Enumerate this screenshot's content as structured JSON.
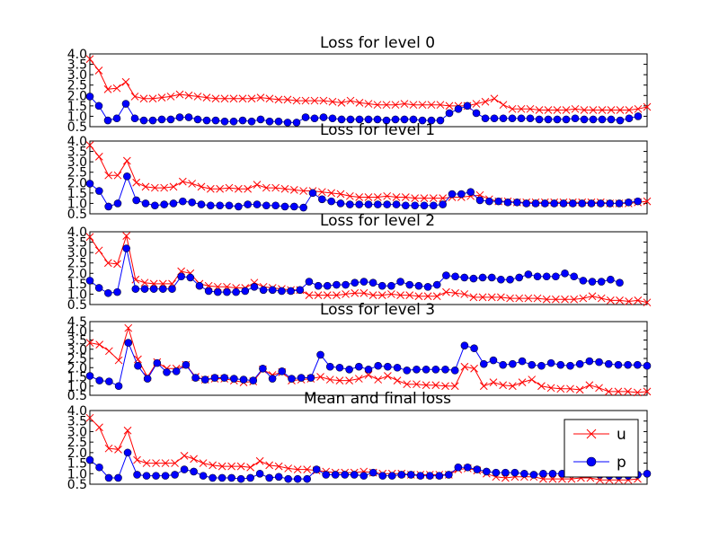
{
  "colors": {
    "u": "#ff0000",
    "p": "#0000ff",
    "axes": "#000000",
    "background": "#ffffff"
  },
  "chart_data": [
    {
      "type": "line",
      "title": "Loss for level 0",
      "ylim": [
        0.5,
        4.0
      ],
      "yticks": [
        "0.5",
        "1.0",
        "1.5",
        "2.0",
        "2.5",
        "3.0",
        "3.5",
        "4.0"
      ],
      "series": [
        {
          "name": "u",
          "marker": "x",
          "values": [
            3.75,
            3.2,
            2.3,
            2.35,
            2.65,
            1.95,
            1.85,
            1.85,
            1.9,
            1.95,
            2.05,
            2.0,
            1.95,
            1.9,
            1.85,
            1.85,
            1.85,
            1.85,
            1.85,
            1.9,
            1.85,
            1.8,
            1.8,
            1.75,
            1.75,
            1.75,
            1.75,
            1.7,
            1.65,
            1.75,
            1.65,
            1.6,
            1.55,
            1.55,
            1.55,
            1.6,
            1.55,
            1.55,
            1.55,
            1.55,
            1.5,
            1.5,
            1.5,
            1.6,
            1.7,
            1.85,
            1.55,
            1.35,
            1.35,
            1.35,
            1.3,
            1.3,
            1.3,
            1.3,
            1.35,
            1.3,
            1.3,
            1.3,
            1.3,
            1.3,
            1.3,
            1.35,
            1.45
          ]
        },
        {
          "name": "p",
          "marker": "o",
          "values": [
            1.95,
            1.5,
            0.8,
            0.9,
            1.6,
            0.9,
            0.8,
            0.8,
            0.85,
            0.85,
            0.95,
            0.95,
            0.85,
            0.8,
            0.8,
            0.75,
            0.75,
            0.8,
            0.75,
            0.85,
            0.75,
            0.75,
            0.7,
            0.7,
            0.95,
            0.9,
            0.95,
            0.9,
            0.85,
            0.85,
            0.85,
            0.85,
            0.85,
            0.8,
            0.85,
            0.85,
            0.85,
            0.8,
            0.8,
            0.8,
            1.15,
            1.35,
            1.5,
            1.15,
            0.9,
            0.9,
            0.9,
            0.9,
            0.9,
            0.9,
            0.85,
            0.85,
            0.85,
            0.85,
            0.9,
            0.85,
            0.85,
            0.85,
            0.85,
            0.8,
            0.9,
            1.0
          ]
        }
      ]
    },
    {
      "type": "line",
      "title": "Loss for level 1",
      "ylim": [
        0.5,
        4.0
      ],
      "yticks": [
        "0.5",
        "1.0",
        "1.5",
        "2.0",
        "2.5",
        "3.0",
        "3.5",
        "4.0"
      ],
      "series": [
        {
          "name": "u",
          "marker": "x",
          "values": [
            3.8,
            3.25,
            2.35,
            2.35,
            3.05,
            2.0,
            1.8,
            1.75,
            1.75,
            1.8,
            2.05,
            1.95,
            1.8,
            1.7,
            1.7,
            1.75,
            1.7,
            1.7,
            1.9,
            1.75,
            1.75,
            1.7,
            1.65,
            1.6,
            1.6,
            1.55,
            1.5,
            1.45,
            1.35,
            1.3,
            1.3,
            1.3,
            1.35,
            1.3,
            1.3,
            1.25,
            1.25,
            1.25,
            1.25,
            1.3,
            1.3,
            1.35,
            1.4,
            1.2,
            1.1,
            1.1,
            1.05,
            1.05,
            1.05,
            1.05,
            1.05,
            1.05,
            1.05,
            1.05,
            1.05,
            1.05,
            1.0,
            1.0,
            1.0,
            1.05,
            1.1
          ]
        },
        {
          "name": "p",
          "marker": "o",
          "values": [
            1.95,
            1.6,
            0.85,
            1.0,
            2.3,
            1.15,
            1.0,
            0.9,
            0.95,
            1.0,
            1.1,
            1.05,
            0.95,
            0.9,
            0.9,
            0.9,
            0.85,
            0.95,
            0.95,
            0.9,
            0.9,
            0.85,
            0.85,
            0.8,
            1.5,
            1.2,
            1.1,
            1.0,
            0.95,
            0.95,
            0.95,
            0.95,
            0.95,
            0.95,
            0.9,
            0.9,
            0.9,
            0.9,
            0.95,
            1.45,
            1.45,
            1.55,
            1.15,
            1.1,
            1.1,
            1.05,
            1.05,
            1.0,
            1.0,
            1.0,
            1.0,
            1.0,
            1.0,
            1.0,
            1.0,
            1.0,
            1.0,
            1.0,
            1.05,
            1.1
          ]
        }
      ]
    },
    {
      "type": "line",
      "title": "Loss for level 2",
      "ylim": [
        0.5,
        4.0
      ],
      "yticks": [
        "0.5",
        "1.0",
        "1.5",
        "2.0",
        "2.5",
        "3.0",
        "3.5",
        "4.0"
      ],
      "series": [
        {
          "name": "u",
          "marker": "x",
          "values": [
            3.75,
            3.1,
            2.5,
            2.45,
            3.8,
            1.7,
            1.55,
            1.5,
            1.5,
            1.5,
            2.1,
            2.0,
            1.5,
            1.4,
            1.35,
            1.35,
            1.3,
            1.3,
            1.55,
            1.35,
            1.3,
            1.25,
            1.2,
            1.2,
            0.95,
            0.95,
            0.95,
            0.95,
            1.0,
            1.05,
            1.05,
            0.95,
            0.95,
            1.0,
            0.95,
            0.95,
            0.9,
            0.9,
            0.9,
            1.1,
            1.05,
            1.0,
            0.85,
            0.85,
            0.85,
            0.85,
            0.8,
            0.8,
            0.8,
            0.8,
            0.75,
            0.75,
            0.75,
            0.75,
            0.8,
            0.9,
            0.8,
            0.7,
            0.7,
            0.65,
            0.7,
            0.6
          ]
        },
        {
          "name": "p",
          "marker": "o",
          "values": [
            1.65,
            1.3,
            1.05,
            1.1,
            3.2,
            1.25,
            1.25,
            1.25,
            1.25,
            1.25,
            1.85,
            1.8,
            1.4,
            1.15,
            1.1,
            1.1,
            1.1,
            1.15,
            1.35,
            1.2,
            1.2,
            1.15,
            1.15,
            1.2,
            1.6,
            1.4,
            1.4,
            1.45,
            1.45,
            1.55,
            1.6,
            1.55,
            1.4,
            1.4,
            1.6,
            1.45,
            1.4,
            1.35,
            1.45,
            1.9,
            1.85,
            1.8,
            1.75,
            1.8,
            1.8,
            1.7,
            1.7,
            1.8,
            1.95,
            1.85,
            1.85,
            1.85,
            2.0,
            1.85,
            1.65,
            1.6,
            1.6,
            1.7,
            1.55
          ]
        }
      ]
    },
    {
      "type": "line",
      "title": "Loss for level 3",
      "ylim": [
        0.5,
        4.5
      ],
      "yticks": [
        "0.5",
        "1.0",
        "1.5",
        "2.0",
        "2.5",
        "3.0",
        "3.5",
        "4.0",
        "4.5"
      ],
      "series": [
        {
          "name": "u",
          "marker": "x",
          "values": [
            3.35,
            3.25,
            2.9,
            2.4,
            4.15,
            2.45,
            1.5,
            2.3,
            1.95,
            1.95,
            2.15,
            1.5,
            1.35,
            1.4,
            1.4,
            1.3,
            1.2,
            1.25,
            1.9,
            1.6,
            1.75,
            1.3,
            1.35,
            1.4,
            1.5,
            1.35,
            1.3,
            1.3,
            1.4,
            1.6,
            1.35,
            1.55,
            1.3,
            1.1,
            1.1,
            1.05,
            1.05,
            1.0,
            1.0,
            2.05,
            1.95,
            1.0,
            1.2,
            1.05,
            1.0,
            1.2,
            1.35,
            1.0,
            0.9,
            0.85,
            0.85,
            0.8,
            1.05,
            0.9,
            0.7,
            0.7,
            0.7,
            0.65,
            0.7
          ]
        },
        {
          "name": "p",
          "marker": "o",
          "values": [
            1.55,
            1.3,
            1.25,
            1.0,
            3.35,
            2.1,
            1.4,
            2.25,
            1.75,
            1.8,
            2.15,
            1.45,
            1.35,
            1.45,
            1.45,
            1.4,
            1.35,
            1.3,
            1.95,
            1.4,
            1.8,
            1.4,
            1.45,
            1.45,
            2.7,
            2.05,
            2.0,
            1.9,
            2.05,
            1.9,
            2.1,
            2.05,
            2.0,
            1.85,
            1.9,
            1.9,
            1.9,
            1.9,
            1.85,
            3.2,
            3.05,
            2.2,
            2.4,
            2.15,
            2.2,
            2.35,
            2.15,
            2.1,
            2.25,
            2.15,
            2.1,
            2.2,
            2.35,
            2.3,
            2.2,
            2.15,
            2.15,
            2.15,
            2.1
          ]
        }
      ]
    },
    {
      "type": "line",
      "title": "Mean and final loss",
      "ylim": [
        0.5,
        4.0
      ],
      "yticks": [
        "0.5",
        "1.0",
        "1.5",
        "2.0",
        "2.5",
        "3.0",
        "3.5",
        "4.0"
      ],
      "legend": "upper-right",
      "series": [
        {
          "name": "u",
          "marker": "x",
          "values": [
            3.65,
            3.2,
            2.2,
            2.15,
            3.05,
            1.65,
            1.5,
            1.5,
            1.5,
            1.5,
            1.85,
            1.7,
            1.5,
            1.4,
            1.35,
            1.35,
            1.35,
            1.3,
            1.6,
            1.4,
            1.35,
            1.25,
            1.2,
            1.2,
            1.15,
            1.1,
            1.05,
            1.05,
            1.05,
            1.1,
            1.05,
            1.0,
            1.0,
            1.0,
            0.95,
            0.95,
            0.95,
            0.95,
            0.95,
            1.2,
            1.25,
            1.15,
            1.0,
            0.85,
            0.8,
            0.85,
            0.85,
            0.85,
            0.75,
            0.75,
            0.75,
            0.75,
            0.8,
            0.8,
            0.7,
            0.7,
            0.7,
            0.7,
            0.75
          ]
        },
        {
          "name": "p",
          "marker": "o",
          "values": [
            1.65,
            1.3,
            0.8,
            0.8,
            2.0,
            0.95,
            0.9,
            0.9,
            0.9,
            0.95,
            1.2,
            1.1,
            0.9,
            0.8,
            0.8,
            0.8,
            0.75,
            0.8,
            1.0,
            0.8,
            0.85,
            0.75,
            0.75,
            0.75,
            1.2,
            0.95,
            0.95,
            0.95,
            0.95,
            0.9,
            1.05,
            0.9,
            0.9,
            0.95,
            0.95,
            0.9,
            0.9,
            0.9,
            0.95,
            1.3,
            1.3,
            1.2,
            1.1,
            1.05,
            1.05,
            1.05,
            1.0,
            0.95,
            1.0,
            1.0,
            1.0,
            1.0,
            1.05,
            1.0,
            0.95,
            0.9,
            0.9,
            0.9,
            0.95,
            1.0
          ]
        }
      ]
    }
  ]
}
